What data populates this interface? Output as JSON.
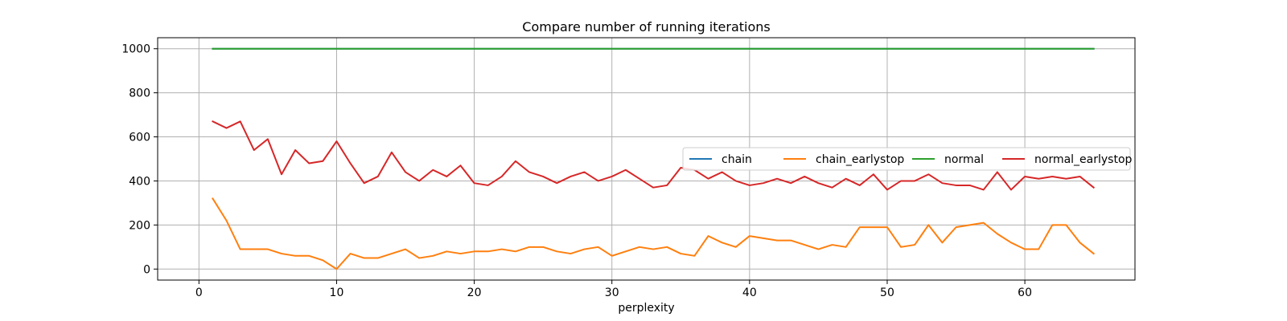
{
  "chart_data": {
    "type": "line",
    "title": "Compare number of running iterations",
    "xlabel": "perplexity",
    "ylabel": "",
    "xlim": [
      -3,
      68
    ],
    "ylim": [
      -50,
      1050
    ],
    "xticks": [
      0,
      10,
      20,
      30,
      40,
      50,
      60
    ],
    "yticks": [
      0,
      200,
      400,
      600,
      800,
      1000
    ],
    "grid": true,
    "legend_position": "center-right",
    "x": [
      1,
      2,
      3,
      4,
      5,
      6,
      7,
      8,
      9,
      10,
      11,
      12,
      13,
      14,
      15,
      16,
      17,
      18,
      19,
      20,
      21,
      22,
      23,
      24,
      25,
      26,
      27,
      28,
      29,
      30,
      31,
      32,
      33,
      34,
      35,
      36,
      37,
      38,
      39,
      40,
      41,
      42,
      43,
      44,
      45,
      46,
      47,
      48,
      49,
      50,
      51,
      52,
      53,
      54,
      55,
      56,
      57,
      58,
      59,
      60,
      61,
      62,
      63,
      64,
      65
    ],
    "series": [
      {
        "name": "chain",
        "color": "#1f77b4",
        "values": [
          1000,
          1000,
          1000,
          1000,
          1000,
          1000,
          1000,
          1000,
          1000,
          1000,
          1000,
          1000,
          1000,
          1000,
          1000,
          1000,
          1000,
          1000,
          1000,
          1000,
          1000,
          1000,
          1000,
          1000,
          1000,
          1000,
          1000,
          1000,
          1000,
          1000,
          1000,
          1000,
          1000,
          1000,
          1000,
          1000,
          1000,
          1000,
          1000,
          1000,
          1000,
          1000,
          1000,
          1000,
          1000,
          1000,
          1000,
          1000,
          1000,
          1000,
          1000,
          1000,
          1000,
          1000,
          1000,
          1000,
          1000,
          1000,
          1000,
          1000,
          1000,
          1000,
          1000,
          1000,
          1000
        ]
      },
      {
        "name": "chain_earlystop",
        "color": "#ff7f0e",
        "values": [
          320,
          220,
          90,
          90,
          90,
          70,
          60,
          60,
          40,
          0,
          70,
          50,
          50,
          70,
          90,
          50,
          60,
          80,
          70,
          80,
          80,
          90,
          80,
          100,
          100,
          80,
          70,
          90,
          100,
          60,
          80,
          100,
          90,
          100,
          70,
          60,
          150,
          120,
          100,
          150,
          140,
          130,
          130,
          110,
          90,
          110,
          100,
          190,
          190,
          190,
          100,
          110,
          200,
          120,
          190,
          200,
          210,
          160,
          120,
          90,
          90,
          200,
          200,
          120,
          70
        ]
      },
      {
        "name": "normal",
        "color": "#2ca02c",
        "values": [
          1000,
          1000,
          1000,
          1000,
          1000,
          1000,
          1000,
          1000,
          1000,
          1000,
          1000,
          1000,
          1000,
          1000,
          1000,
          1000,
          1000,
          1000,
          1000,
          1000,
          1000,
          1000,
          1000,
          1000,
          1000,
          1000,
          1000,
          1000,
          1000,
          1000,
          1000,
          1000,
          1000,
          1000,
          1000,
          1000,
          1000,
          1000,
          1000,
          1000,
          1000,
          1000,
          1000,
          1000,
          1000,
          1000,
          1000,
          1000,
          1000,
          1000,
          1000,
          1000,
          1000,
          1000,
          1000,
          1000,
          1000,
          1000,
          1000,
          1000,
          1000,
          1000,
          1000,
          1000,
          1000
        ]
      },
      {
        "name": "normal_earlystop",
        "color": "#d62728",
        "values": [
          670,
          640,
          670,
          540,
          590,
          430,
          540,
          480,
          490,
          580,
          480,
          390,
          420,
          530,
          440,
          400,
          450,
          420,
          470,
          390,
          380,
          420,
          490,
          440,
          420,
          390,
          420,
          440,
          400,
          420,
          450,
          410,
          370,
          380,
          460,
          450,
          410,
          440,
          400,
          380,
          390,
          410,
          390,
          420,
          390,
          370,
          410,
          380,
          430,
          360,
          400,
          400,
          430,
          390,
          380,
          380,
          360,
          440,
          360,
          420,
          410,
          420,
          410,
          420,
          370
        ]
      }
    ]
  }
}
